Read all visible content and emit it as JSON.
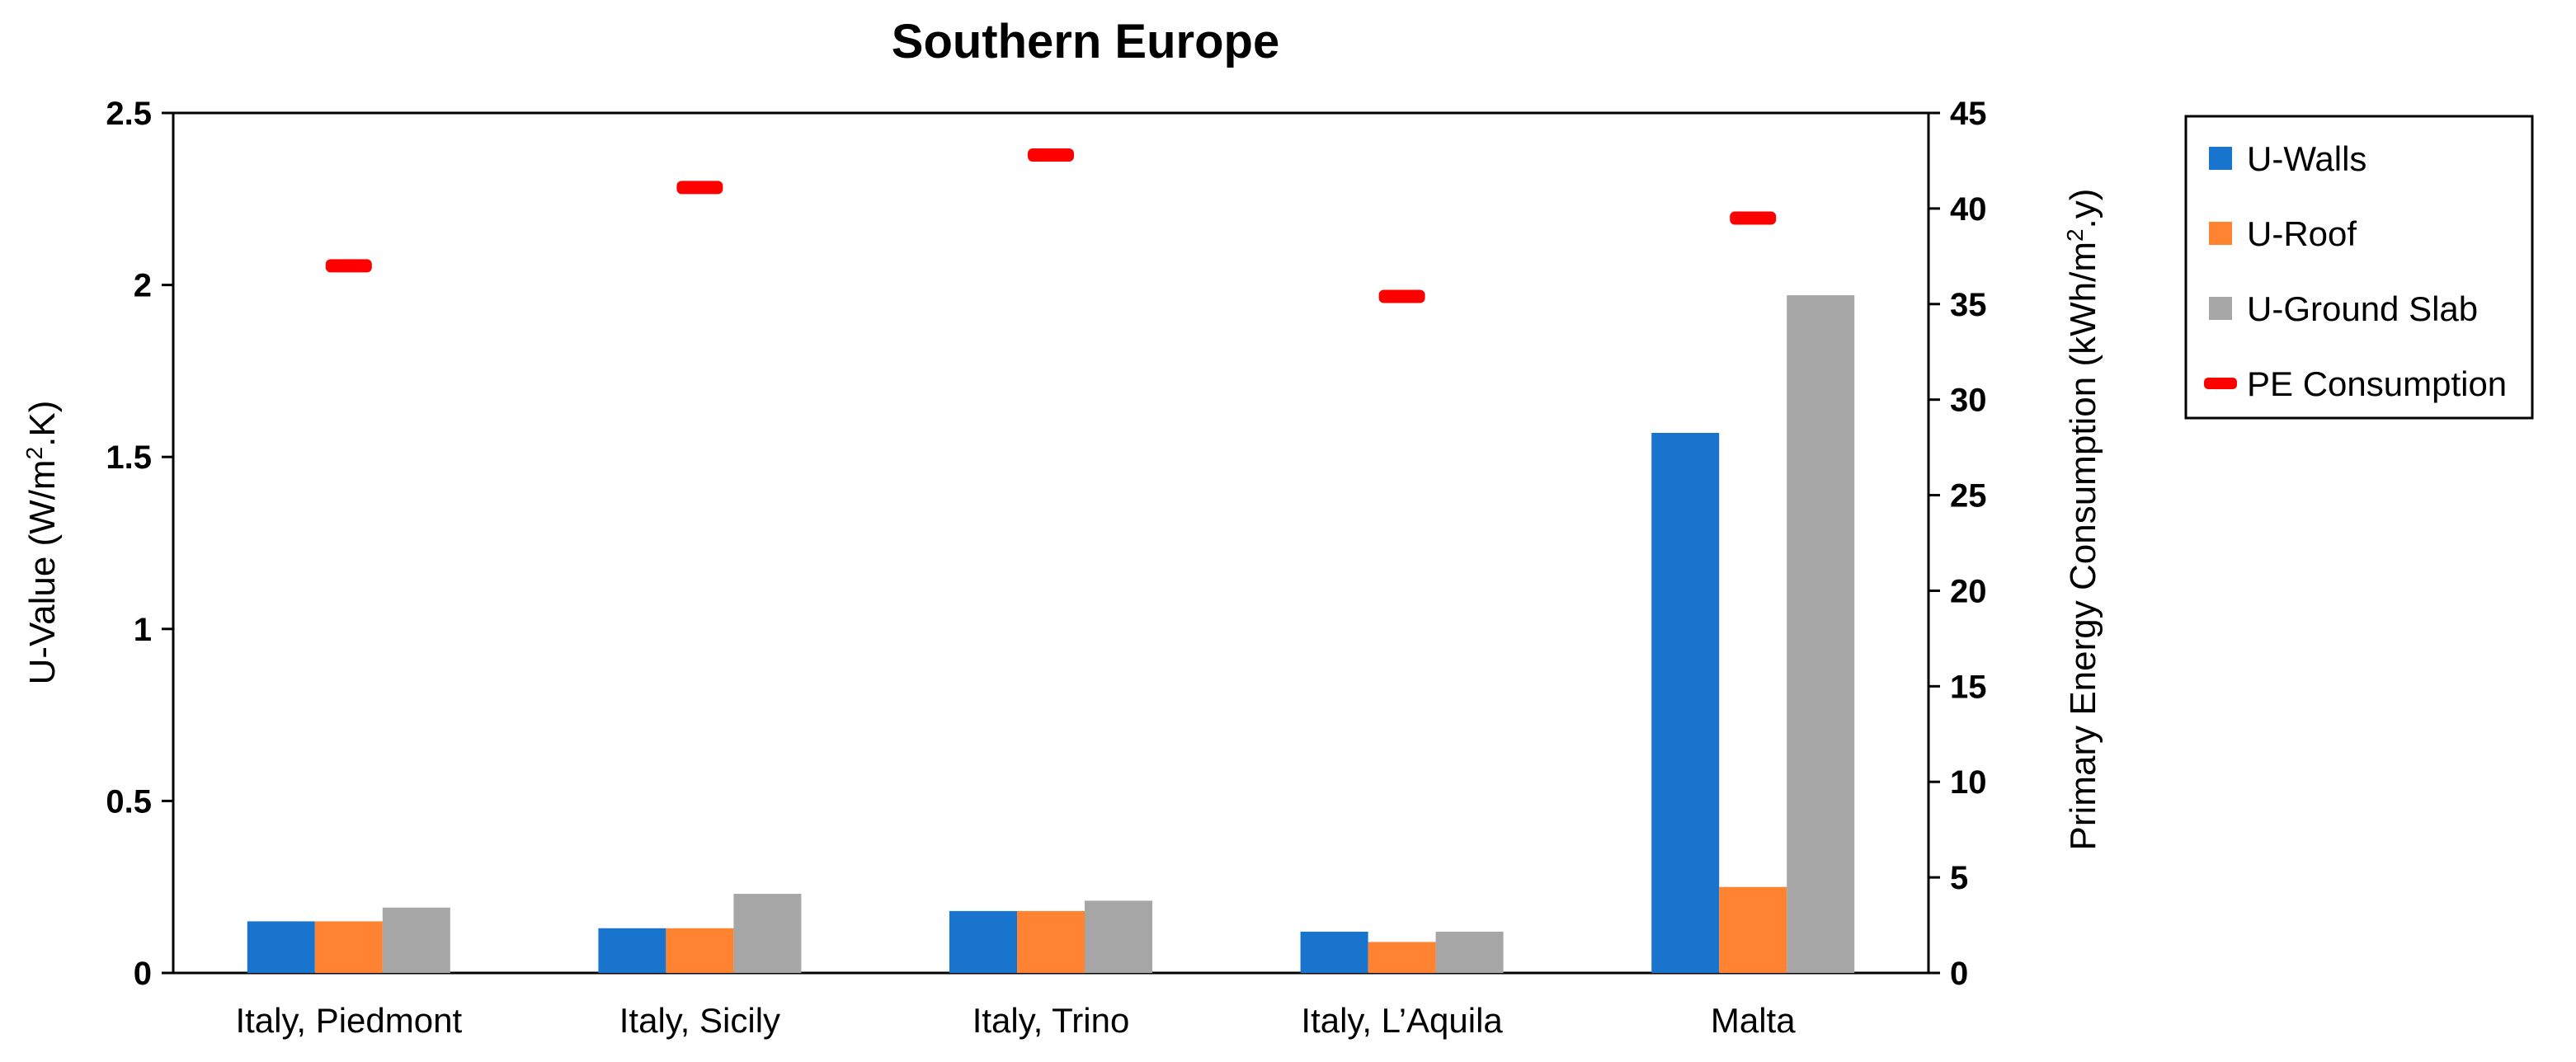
{
  "chart_data": {
    "type": "bar",
    "title": "Southern Europe",
    "categories": [
      "Italy, Piedmont",
      "Italy, Sicily",
      "Italy, Trino",
      "Italy, L’Aquila",
      "Malta"
    ],
    "series": [
      {
        "name": "U-Walls",
        "axis": "left",
        "kind": "bar",
        "color": "#1874CD",
        "values": [
          0.15,
          0.13,
          0.18,
          0.12,
          1.57
        ]
      },
      {
        "name": "U-Roof",
        "axis": "left",
        "kind": "bar",
        "color": "#FF8330",
        "values": [
          0.15,
          0.13,
          0.18,
          0.09,
          0.25
        ]
      },
      {
        "name": "U-Ground Slab",
        "axis": "left",
        "kind": "bar",
        "color": "#A6A6A6",
        "values": [
          0.19,
          0.23,
          0.21,
          0.12,
          1.97
        ]
      },
      {
        "name": "PE Consumption",
        "axis": "right",
        "kind": "marker",
        "color": "#FF0000",
        "values": [
          37.0,
          41.1,
          42.8,
          35.4,
          39.5
        ]
      }
    ],
    "y_left": {
      "label_main": "U-Value (W/m",
      "label_sup": "2",
      "label_end": ".K)",
      "ylim": [
        0,
        2.5
      ],
      "ticks": [
        "0",
        "0.5",
        "1",
        "1.5",
        "2",
        "2.5"
      ]
    },
    "y_right": {
      "label_main": "Primary Energy Consumption (kWh/m",
      "label_sup": "2",
      "label_end": ".y)",
      "ylim": [
        0,
        45
      ],
      "ticks": [
        "0",
        "5",
        "10",
        "15",
        "20",
        "25",
        "30",
        "35",
        "40",
        "45"
      ]
    },
    "legend_placement": "right",
    "grid": false
  }
}
